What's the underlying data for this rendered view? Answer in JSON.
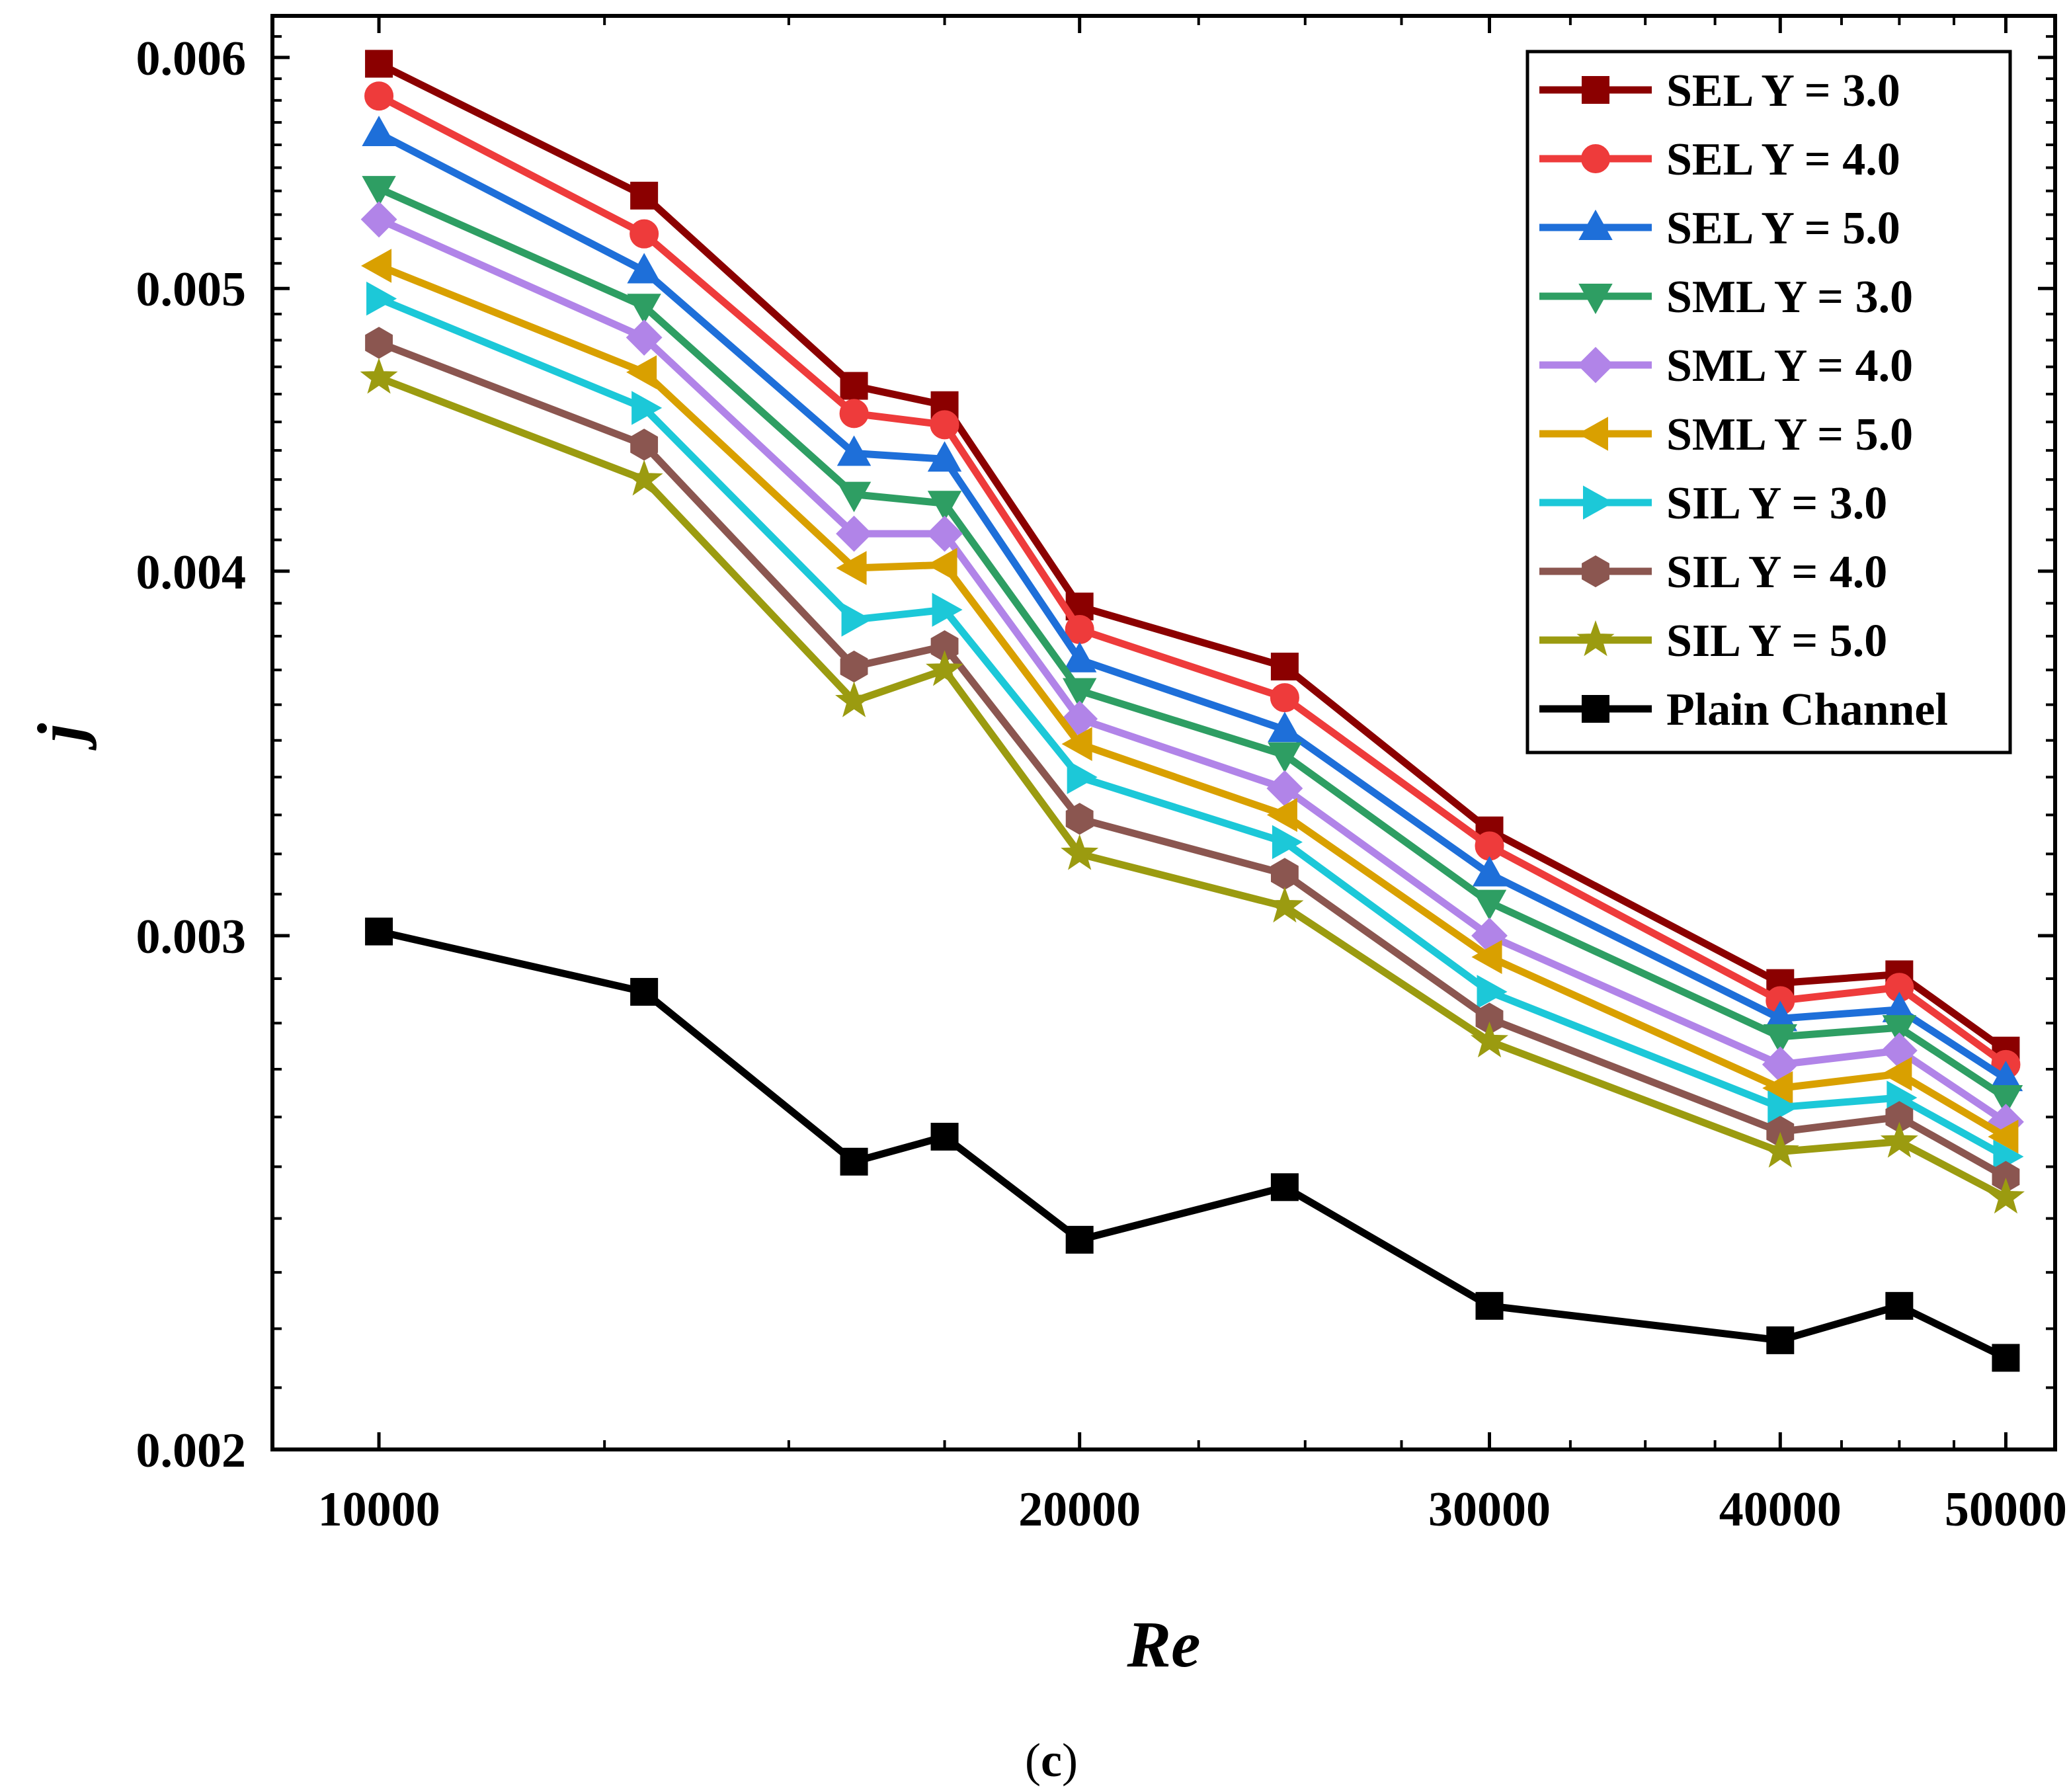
{
  "chart_data": {
    "type": "line",
    "title": "",
    "xlabel": "Re",
    "ylabel": "j",
    "caption": {
      "open": "(",
      "letter": "c",
      "close": ")"
    },
    "xscale": "log",
    "yscale": "log",
    "xlim": [
      9000,
      52500
    ],
    "ylim": [
      0.002,
      0.0062
    ],
    "xticks": [
      10000,
      20000,
      30000,
      40000,
      50000
    ],
    "xtick_labels": [
      "10000",
      "20000",
      "30000",
      "40000",
      "50000"
    ],
    "yticks": [
      0.002,
      0.003,
      0.004,
      0.005,
      0.006
    ],
    "ytick_labels": [
      "0.002",
      "0.003",
      "0.004",
      "0.005",
      "0.006"
    ],
    "legend_position": "top-right",
    "x": [
      10000,
      13000,
      16000,
      17500,
      20000,
      24500,
      30000,
      40000,
      45000,
      50000
    ],
    "series": [
      {
        "name": "SEL Y = 3.0",
        "color": "#8b0000",
        "marker": "square",
        "values": [
          0.00597,
          0.00538,
          0.00463,
          0.00456,
          0.00389,
          0.00371,
          0.00326,
          0.00289,
          0.00291,
          0.00274
        ]
      },
      {
        "name": "SEL Y = 4.0",
        "color": "#ee3b3b",
        "marker": "circle",
        "values": [
          0.00582,
          0.00522,
          0.00453,
          0.00449,
          0.00382,
          0.00362,
          0.00322,
          0.00285,
          0.00288,
          0.00271
        ]
      },
      {
        "name": "SEL Y = 5.0",
        "color": "#1e6fd9",
        "marker": "triangle-up",
        "values": [
          0.00565,
          0.00507,
          0.00439,
          0.00437,
          0.00373,
          0.00353,
          0.00315,
          0.00281,
          0.00283,
          0.00268
        ]
      },
      {
        "name": "SML Y = 3.0",
        "color": "#2e9e63",
        "marker": "triangle-down",
        "values": [
          0.00541,
          0.00493,
          0.00425,
          0.00422,
          0.00364,
          0.00346,
          0.00308,
          0.00277,
          0.00279,
          0.00264
        ]
      },
      {
        "name": "SML Y = 4.0",
        "color": "#b184e8",
        "marker": "diamond",
        "values": [
          0.00528,
          0.00481,
          0.00412,
          0.00412,
          0.00356,
          0.00337,
          0.003,
          0.00271,
          0.00274,
          0.00259
        ]
      },
      {
        "name": "SML Y = 5.0",
        "color": "#d9a000",
        "marker": "triangle-left",
        "values": [
          0.00509,
          0.00468,
          0.00401,
          0.00402,
          0.00349,
          0.0033,
          0.00295,
          0.00266,
          0.00269,
          0.00256
        ]
      },
      {
        "name": "SIL Y = 3.0",
        "color": "#1cc8d8",
        "marker": "triangle-right",
        "values": [
          0.00496,
          0.00455,
          0.00385,
          0.00388,
          0.0034,
          0.00323,
          0.00287,
          0.00262,
          0.00264,
          0.00252
        ]
      },
      {
        "name": "SIL Y = 4.0",
        "color": "#8b5650",
        "marker": "hexagon",
        "values": [
          0.00479,
          0.00442,
          0.00371,
          0.00377,
          0.00329,
          0.00315,
          0.00281,
          0.00257,
          0.0026,
          0.00248
        ]
      },
      {
        "name": "SIL Y = 5.0",
        "color": "#9b9b10",
        "marker": "star",
        "values": [
          0.00466,
          0.0043,
          0.00361,
          0.0037,
          0.0032,
          0.00307,
          0.00276,
          0.00253,
          0.00255,
          0.00244
        ]
      },
      {
        "name": "Plain Channel",
        "color": "#000000",
        "marker": "square",
        "values": [
          0.00301,
          0.00287,
          0.00251,
          0.00256,
          0.00236,
          0.00246,
          0.00224,
          0.00218,
          0.00224,
          0.00215
        ]
      }
    ]
  }
}
